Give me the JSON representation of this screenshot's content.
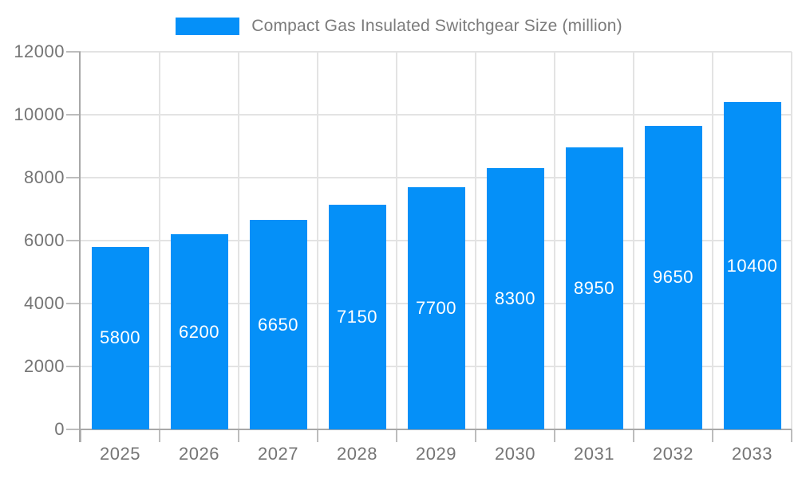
{
  "chart_data": {
    "type": "bar",
    "title": "Compact Gas Insulated Switchgear Size (million)",
    "legend_position": "top",
    "categories": [
      "2025",
      "2026",
      "2027",
      "2028",
      "2029",
      "2030",
      "2031",
      "2032",
      "2033"
    ],
    "series": [
      {
        "name": "Compact Gas Insulated Switchgear Size (million)",
        "values": [
          5800,
          6200,
          6650,
          7150,
          7700,
          8300,
          8950,
          9650,
          10400
        ]
      }
    ],
    "value_labels": [
      "5800",
      "6200",
      "6650",
      "7150",
      "7700",
      "8300",
      "8950",
      "9650",
      "10400"
    ],
    "xlabel": "",
    "ylabel": "",
    "ylim": [
      0,
      12000
    ],
    "yticks": [
      0,
      2000,
      4000,
      6000,
      8000,
      10000,
      12000
    ],
    "grid": true,
    "bar_color": "#0590f8",
    "value_label_color": "#ffffff",
    "tick_label_color": "#757575",
    "title_color": "#7b7b7b",
    "grid_color": "#e3e3e3",
    "axis_line_color": "#a8a8a8",
    "background_color": "#ffffff"
  }
}
